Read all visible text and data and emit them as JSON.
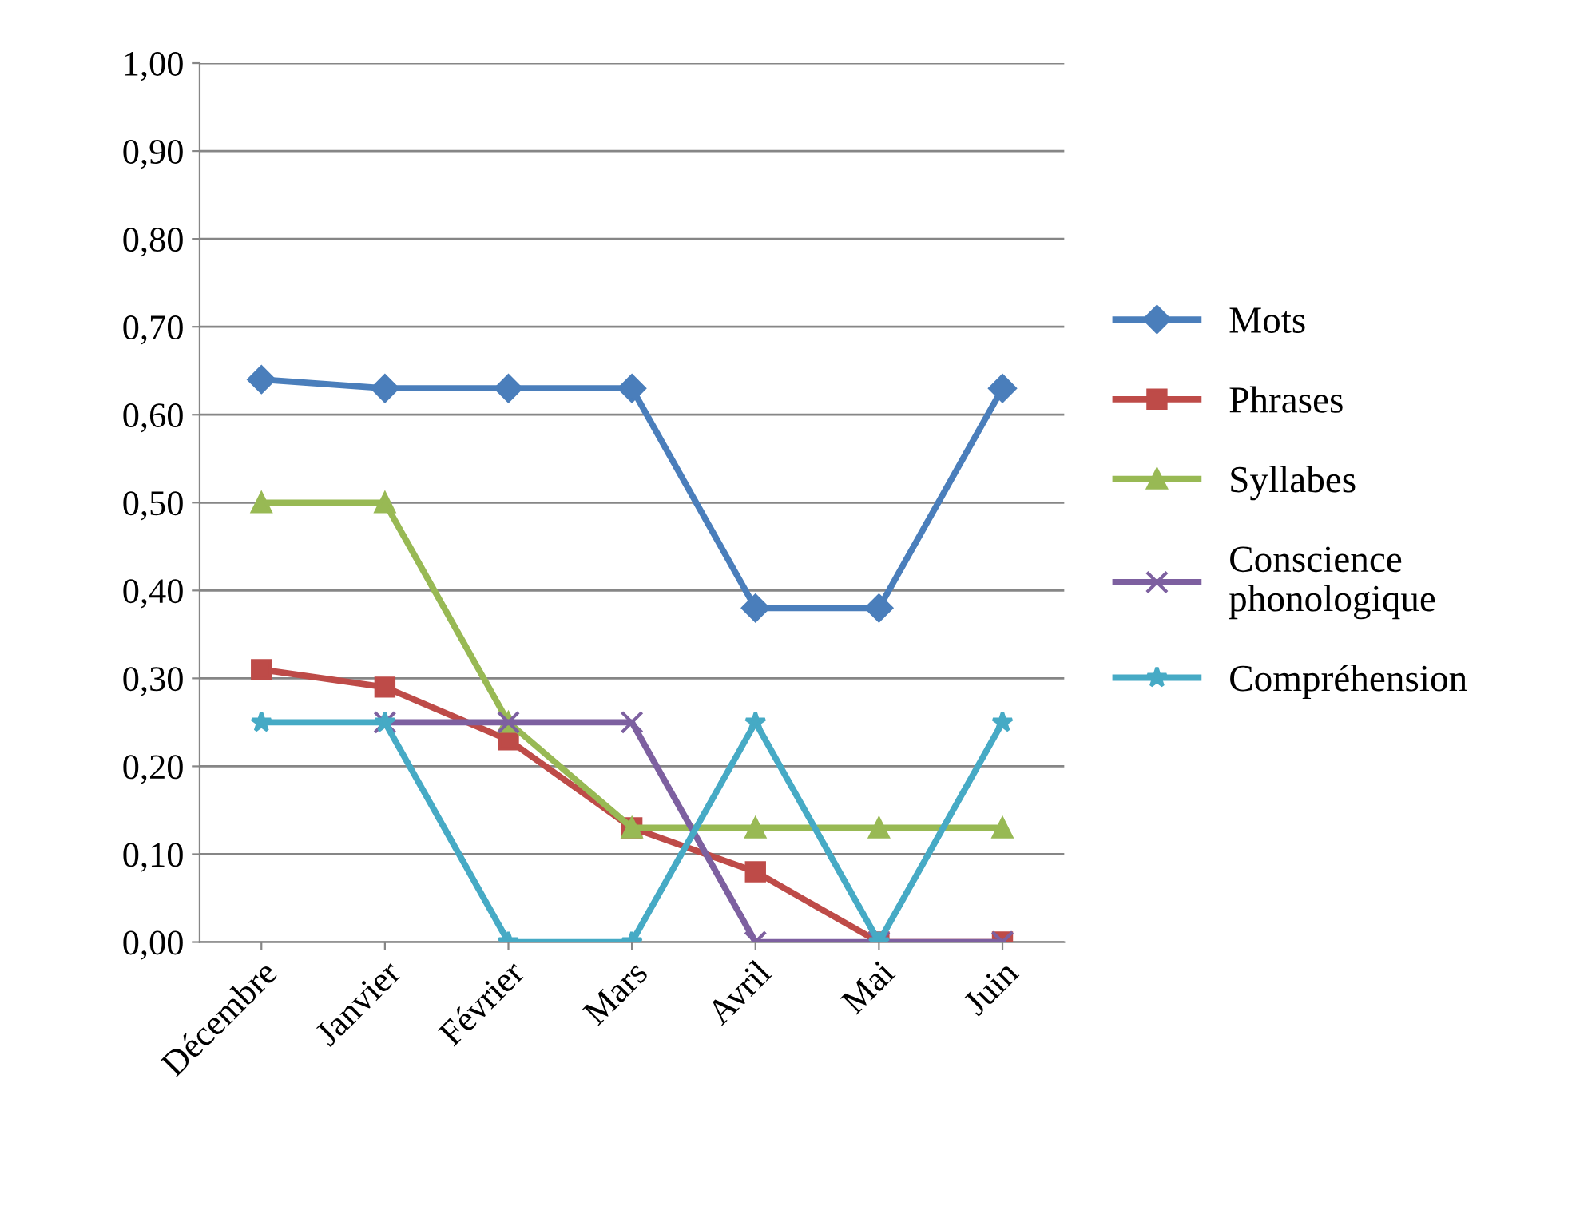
{
  "chart_data": {
    "type": "line",
    "categories": [
      "Décembre",
      "Janvier",
      "Février",
      "Mars",
      "Avril",
      "Mai",
      "Juin"
    ],
    "series": [
      {
        "name": "Mots",
        "color": "#4a7ebb",
        "marker": "diamond",
        "values": [
          0.64,
          0.63,
          0.63,
          0.63,
          0.38,
          0.38,
          0.63
        ]
      },
      {
        "name": "Phrases",
        "color": "#be4b48",
        "marker": "square",
        "values": [
          0.31,
          0.29,
          0.23,
          0.13,
          0.08,
          0.0,
          0.0
        ]
      },
      {
        "name": "Syllabes",
        "color": "#98b954",
        "marker": "triangle",
        "values": [
          0.5,
          0.5,
          0.25,
          0.13,
          0.13,
          0.13,
          0.13
        ]
      },
      {
        "name": "Conscience\nphonologique",
        "color": "#7d60a0",
        "marker": "cross",
        "values": [
          null,
          0.25,
          0.25,
          0.25,
          0.0,
          0.0,
          0.0
        ]
      },
      {
        "name": "Compréhension",
        "color": "#46aac5",
        "marker": "star",
        "values": [
          0.25,
          0.25,
          0.0,
          0.0,
          0.25,
          0.0,
          0.25
        ]
      }
    ],
    "ylim": [
      0,
      1
    ],
    "yticks": [
      {
        "value": 0,
        "label": "0,00"
      },
      {
        "value": 0.1,
        "label": "0,10"
      },
      {
        "value": 0.2,
        "label": "0,20"
      },
      {
        "value": 0.3,
        "label": "0,30"
      },
      {
        "value": 0.4,
        "label": "0,40"
      },
      {
        "value": 0.5,
        "label": "0,50"
      },
      {
        "value": 0.6,
        "label": "0,60"
      },
      {
        "value": 0.7,
        "label": "0,70"
      },
      {
        "value": 0.8,
        "label": "0,80"
      },
      {
        "value": 0.9,
        "label": "0,90"
      },
      {
        "value": 1,
        "label": "1,00"
      }
    ],
    "grid": "y",
    "legend": "right",
    "line_style": "solid"
  }
}
